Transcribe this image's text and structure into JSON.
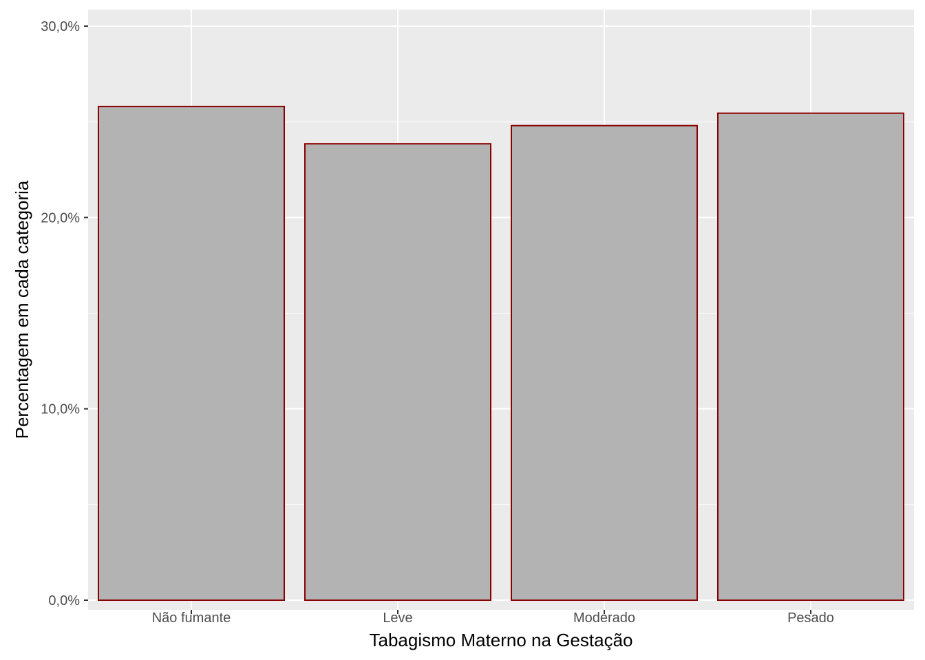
{
  "chart_data": {
    "type": "bar",
    "categories": [
      "Não fumante",
      "Leve",
      "Moderado",
      "Pesado"
    ],
    "values": [
      25.8,
      23.85,
      24.8,
      25.45
    ],
    "value_unit": "%",
    "xlabel": "Tabagismo Materno na Gestação",
    "ylabel": "Percentagem em cada categoria",
    "ylim": [
      0,
      30.0
    ],
    "yticks": [
      0,
      10,
      20,
      30
    ],
    "ytick_labels": [
      "0,0%",
      "10,0%",
      "20,0%",
      "30,0%"
    ],
    "grid": true,
    "legend": "none",
    "colors": {
      "panel_background": "#ebebeb",
      "grid": "#ffffff",
      "bar_fill": "#b3b3b3",
      "bar_outline": "#8b0000",
      "tick_color": "#333333"
    }
  }
}
